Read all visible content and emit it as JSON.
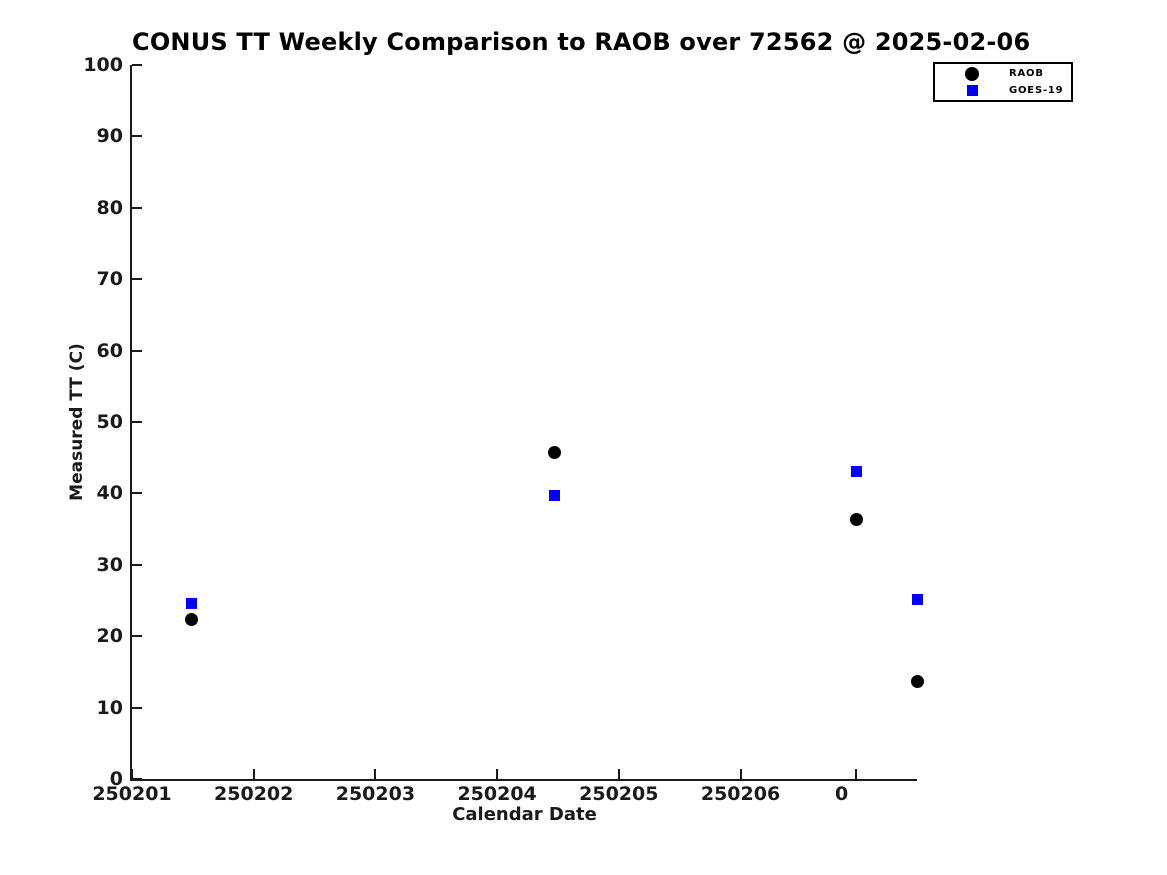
{
  "chart_data": {
    "type": "scatter",
    "title": "CONUS TT Weekly Comparison to RAOB over 72562 @ 2025-02-06",
    "xlabel": "Calendar Date",
    "ylabel": "Measured TT (C)",
    "xlim": [
      250201.0,
      250207.45
    ],
    "ylim": [
      0,
      100
    ],
    "grid": false,
    "legend_position": "top-right",
    "axis_color": "#1a1a1a",
    "background_color": "#ffffff",
    "x_ticks": [
      {
        "pos": 250201,
        "label": "250201"
      },
      {
        "pos": 250202,
        "label": "250202"
      },
      {
        "pos": 250203,
        "label": "250203"
      },
      {
        "pos": 250204,
        "label": "250204"
      },
      {
        "pos": 250205,
        "label": "250205"
      },
      {
        "pos": 250206,
        "label": "250206"
      },
      {
        "pos": 250206.946,
        "label": "0",
        "label_dx": -14
      }
    ],
    "y_ticks": [
      {
        "pos": 0,
        "label": "0"
      },
      {
        "pos": 10,
        "label": "10"
      },
      {
        "pos": 20,
        "label": "20"
      },
      {
        "pos": 30,
        "label": "30"
      },
      {
        "pos": 40,
        "label": "40"
      },
      {
        "pos": 50,
        "label": "50"
      },
      {
        "pos": 60,
        "label": "60"
      },
      {
        "pos": 70,
        "label": "70"
      },
      {
        "pos": 80,
        "label": "80"
      },
      {
        "pos": 90,
        "label": "90"
      },
      {
        "pos": 100,
        "label": "100"
      }
    ],
    "series": [
      {
        "name": "RAOB",
        "marker": "circle",
        "color": "#000000",
        "marker_size": 13,
        "points": [
          {
            "x": 250201.49,
            "y": 22.3
          },
          {
            "x": 250204.47,
            "y": 45.7
          },
          {
            "x": 250206.95,
            "y": 36.3
          },
          {
            "x": 250207.45,
            "y": 13.6
          }
        ]
      },
      {
        "name": "GOES-19",
        "marker": "square",
        "color": "#0000ff",
        "marker_size": 11,
        "points": [
          {
            "x": 250201.49,
            "y": 24.6
          },
          {
            "x": 250204.47,
            "y": 39.7
          },
          {
            "x": 250206.95,
            "y": 43.0
          },
          {
            "x": 250207.45,
            "y": 25.2
          }
        ]
      }
    ]
  }
}
